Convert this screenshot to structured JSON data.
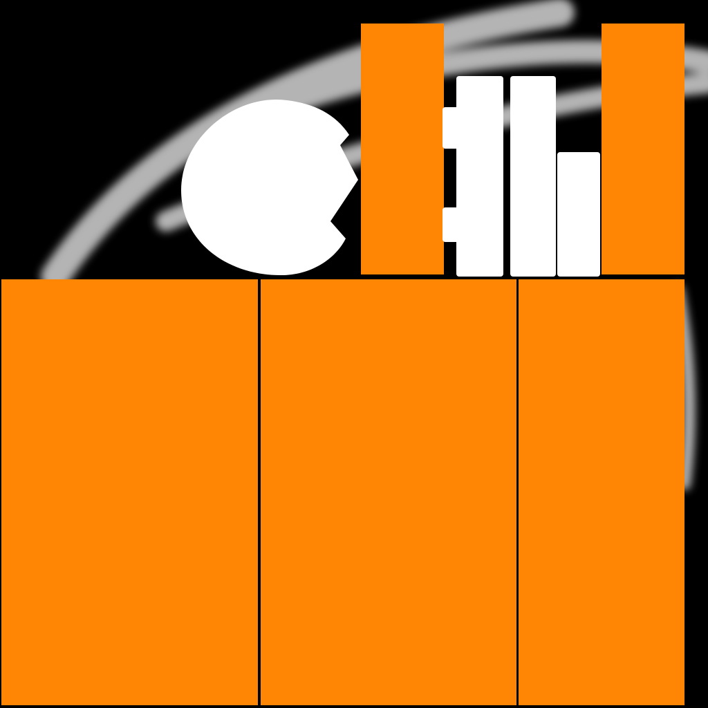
{
  "colors": {
    "background": "#000000",
    "tile": "#ff8505",
    "arc_stroke": "#b4b4b4",
    "glyph": "#ffffff"
  },
  "tiles": [
    {
      "name": "tile-bottom-left"
    },
    {
      "name": "tile-bottom-middle"
    },
    {
      "name": "tile-bottom-right"
    },
    {
      "name": "tile-top-left-bar"
    },
    {
      "name": "tile-top-right-bar"
    }
  ],
  "glyph": {
    "icon": "white-circle-and-bar-glyph"
  }
}
